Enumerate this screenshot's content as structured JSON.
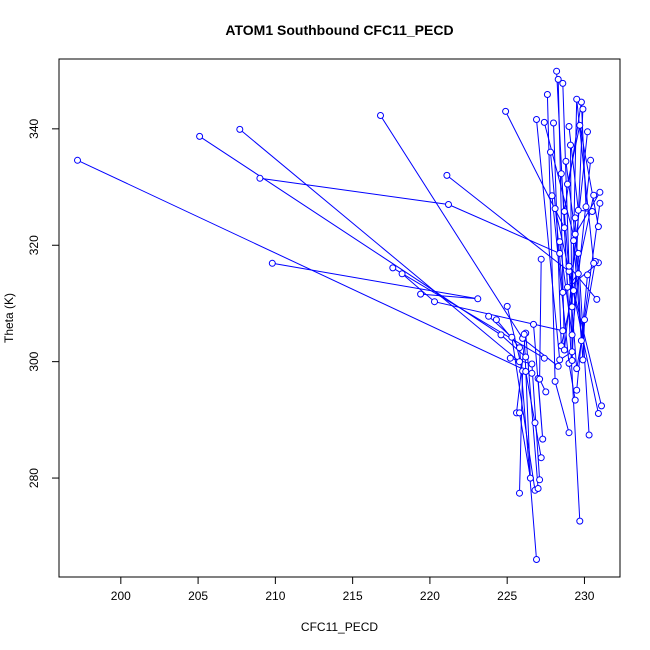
{
  "chart_data": {
    "type": "line",
    "title": "ATOM1 Southbound CFC11_PECD",
    "xlabel": "CFC11_PECD",
    "ylabel": "Theta (K)",
    "xlim": [
      196,
      232.3
    ],
    "ylim": [
      263,
      352
    ],
    "x_ticks": [
      200,
      205,
      210,
      215,
      220,
      225,
      230
    ],
    "y_ticks": [
      280,
      300,
      320,
      340
    ],
    "grid": false,
    "color": "#0000ff",
    "marker": "open-circle",
    "segments": [
      [
        [
          197.2,
          334.6
        ],
        [
          226.6,
          298.0
        ]
      ],
      [
        [
          205.1,
          338.7
        ],
        [
          224.6,
          304.6
        ],
        [
          226.2,
          300.8
        ]
      ],
      [
        [
          207.7,
          339.9
        ],
        [
          225.8,
          300.0
        ]
      ],
      [
        [
          209.0,
          331.5
        ],
        [
          221.2,
          327.0
        ],
        [
          228.4,
          318.6
        ]
      ],
      [
        [
          209.8,
          316.9
        ],
        [
          223.1,
          310.8
        ],
        [
          219.4,
          311.6
        ]
      ],
      [
        [
          216.8,
          342.3
        ],
        [
          226.0,
          304.0
        ],
        [
          228.3,
          299.2
        ]
      ],
      [
        [
          217.6,
          316.1
        ],
        [
          227.4,
          300.6
        ]
      ],
      [
        [
          218.2,
          315.1
        ],
        [
          220.3,
          310.3
        ],
        [
          228.6,
          305.3
        ]
      ],
      [
        [
          221.1,
          332.0
        ],
        [
          229.0,
          315.5
        ],
        [
          230.9,
          291.1
        ]
      ],
      [
        [
          223.8,
          307.8
        ],
        [
          225.3,
          304.2
        ],
        [
          226.8,
          277.9
        ]
      ],
      [
        [
          224.3,
          307.2
        ],
        [
          225.8,
          302.4
        ],
        [
          226.9,
          266.0
        ]
      ],
      [
        [
          224.9,
          343.0
        ],
        [
          228.7,
          323.0
        ],
        [
          229.7,
          272.6
        ]
      ],
      [
        [
          225.0,
          309.5
        ],
        [
          226.0,
          298.4
        ],
        [
          225.8,
          277.4
        ]
      ],
      [
        [
          225.2,
          300.6
        ],
        [
          226.6,
          299.6
        ],
        [
          227.1,
          279.7
        ]
      ],
      [
        [
          225.6,
          291.2
        ],
        [
          226.2,
          304.9
        ],
        [
          227.0,
          278.2
        ]
      ],
      [
        [
          226.1,
          304.7
        ],
        [
          226.5,
          280.0
        ],
        [
          225.8,
          291.2
        ]
      ],
      [
        [
          226.2,
          298.3
        ],
        [
          227.2,
          283.5
        ],
        [
          226.8,
          289.5
        ]
      ],
      [
        [
          226.7,
          306.4
        ],
        [
          227.3,
          286.7
        ],
        [
          227.0,
          297.1
        ]
      ],
      [
        [
          226.9,
          341.6
        ],
        [
          228.4,
          300.3
        ],
        [
          229.2,
          301.7
        ]
      ],
      [
        [
          227.2,
          317.6
        ],
        [
          227.1,
          297.0
        ],
        [
          227.5,
          294.8
        ]
      ],
      [
        [
          227.4,
          341.1
        ],
        [
          229.6,
          318.6
        ],
        [
          230.3,
          287.4
        ]
      ],
      [
        [
          227.6,
          345.9
        ],
        [
          228.1,
          296.6
        ],
        [
          229.0,
          287.8
        ]
      ],
      [
        [
          227.8,
          336.0
        ],
        [
          228.6,
          311.9
        ],
        [
          230.9,
          317.0
        ]
      ],
      [
        [
          227.9,
          328.5
        ],
        [
          229.0,
          299.7
        ],
        [
          229.4,
          293.4
        ]
      ],
      [
        [
          228.0,
          341.0
        ],
        [
          228.5,
          302.7
        ],
        [
          230.6,
          328.6
        ]
      ],
      [
        [
          228.1,
          326.3
        ],
        [
          229.3,
          312.2
        ],
        [
          231.1,
          292.4
        ]
      ],
      [
        [
          228.2,
          349.9
        ],
        [
          228.9,
          312.8
        ],
        [
          229.6,
          315.1
        ]
      ],
      [
        [
          228.3,
          348.5
        ],
        [
          228.7,
          302.0
        ],
        [
          230.2,
          339.5
        ]
      ],
      [
        [
          228.4,
          320.6
        ],
        [
          229.2,
          304.6
        ],
        [
          230.4,
          334.6
        ]
      ],
      [
        [
          228.5,
          332.3
        ],
        [
          229.5,
          298.8
        ],
        [
          230.7,
          317.2
        ]
      ],
      [
        [
          228.6,
          347.8
        ],
        [
          229.0,
          316.4
        ],
        [
          230.8,
          310.7
        ]
      ],
      [
        [
          228.7,
          325.8
        ],
        [
          229.8,
          344.6
        ],
        [
          230.1,
          326.6
        ]
      ],
      [
        [
          228.8,
          334.4
        ],
        [
          229.4,
          321.9
        ],
        [
          231.0,
          329.1
        ]
      ],
      [
        [
          228.9,
          330.5
        ],
        [
          229.7,
          340.6
        ],
        [
          230.9,
          323.2
        ]
      ],
      [
        [
          229.0,
          340.4
        ],
        [
          229.6,
          326.0
        ],
        [
          230.5,
          325.8
        ]
      ],
      [
        [
          229.1,
          337.2
        ],
        [
          229.2,
          300.2
        ],
        [
          229.9,
          343.4
        ]
      ],
      [
        [
          229.2,
          309.4
        ],
        [
          229.5,
          345.1
        ],
        [
          230.6,
          316.9
        ]
      ],
      [
        [
          229.3,
          320.8
        ],
        [
          229.9,
          300.3
        ],
        [
          230.0,
          307.2
        ]
      ],
      [
        [
          229.4,
          324.7
        ],
        [
          229.8,
          303.6
        ],
        [
          231.0,
          327.2
        ]
      ],
      [
        [
          229.5,
          295.1
        ],
        [
          230.2,
          314.9
        ]
      ]
    ]
  }
}
